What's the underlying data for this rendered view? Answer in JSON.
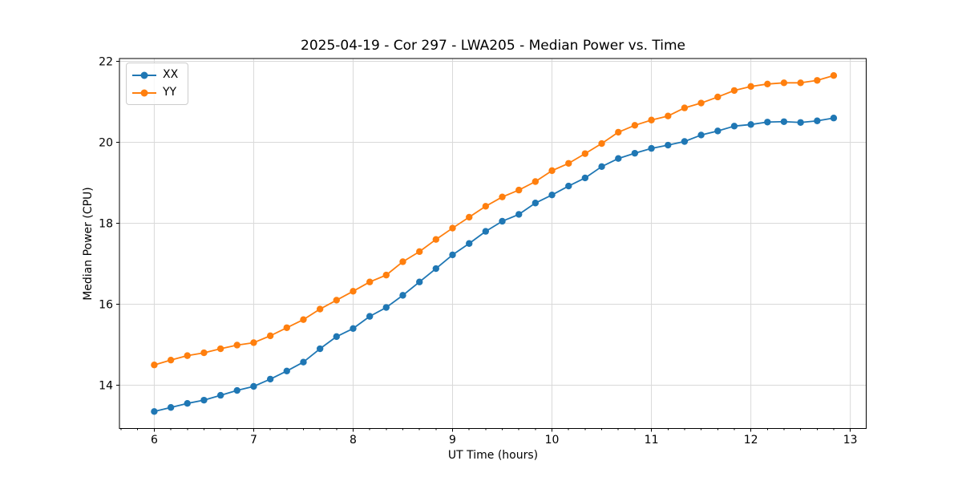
{
  "figure": {
    "background": "#ffffff"
  },
  "chart_data": {
    "type": "line",
    "title": "2025-04-19 - Cor 297 - LWA205 - Median Power vs. Time",
    "xlabel": "UT Time (hours)",
    "ylabel": "Median Power (CPU)",
    "xlim": [
      5.65,
      13.16
    ],
    "ylim": [
      12.93,
      22.07
    ],
    "xticks": [
      6,
      7,
      8,
      9,
      10,
      11,
      12,
      13
    ],
    "yticks": [
      14,
      16,
      18,
      20,
      22
    ],
    "x_minor_tick_step": 0.16667,
    "grid": true,
    "grid_color": "#d9d9d9",
    "legend_position": "upper left",
    "x": [
      6.0,
      6.167,
      6.333,
      6.5,
      6.667,
      6.833,
      7.0,
      7.167,
      7.333,
      7.5,
      7.667,
      7.833,
      8.0,
      8.167,
      8.333,
      8.5,
      8.667,
      8.833,
      9.0,
      9.167,
      9.333,
      9.5,
      9.667,
      9.833,
      10.0,
      10.167,
      10.333,
      10.5,
      10.667,
      10.833,
      11.0,
      11.167,
      11.333,
      11.5,
      11.667,
      11.833,
      12.0,
      12.167,
      12.333,
      12.5,
      12.667,
      12.833
    ],
    "series": [
      {
        "name": "XX",
        "color": "#1f77b4",
        "values": [
          13.35,
          13.45,
          13.55,
          13.63,
          13.75,
          13.87,
          13.97,
          14.15,
          14.35,
          14.57,
          14.9,
          15.2,
          15.4,
          15.7,
          15.92,
          16.22,
          16.55,
          16.88,
          17.22,
          17.5,
          17.8,
          18.05,
          18.22,
          18.5,
          18.7,
          18.92,
          19.12,
          19.4,
          19.6,
          19.73,
          19.85,
          19.93,
          20.02,
          20.18,
          20.28,
          20.4,
          20.44,
          20.5,
          20.51,
          20.49,
          20.53,
          20.6
        ]
      },
      {
        "name": "YY",
        "color": "#ff7f0e",
        "values": [
          14.5,
          14.62,
          14.73,
          14.8,
          14.9,
          14.99,
          15.05,
          15.22,
          15.42,
          15.62,
          15.88,
          16.1,
          16.32,
          16.55,
          16.72,
          17.05,
          17.3,
          17.6,
          17.88,
          18.15,
          18.42,
          18.65,
          18.82,
          19.03,
          19.3,
          19.48,
          19.72,
          19.97,
          20.25,
          20.42,
          20.55,
          20.65,
          20.85,
          20.97,
          21.12,
          21.28,
          21.38,
          21.44,
          21.47,
          21.47,
          21.53,
          21.65
        ]
      }
    ]
  }
}
